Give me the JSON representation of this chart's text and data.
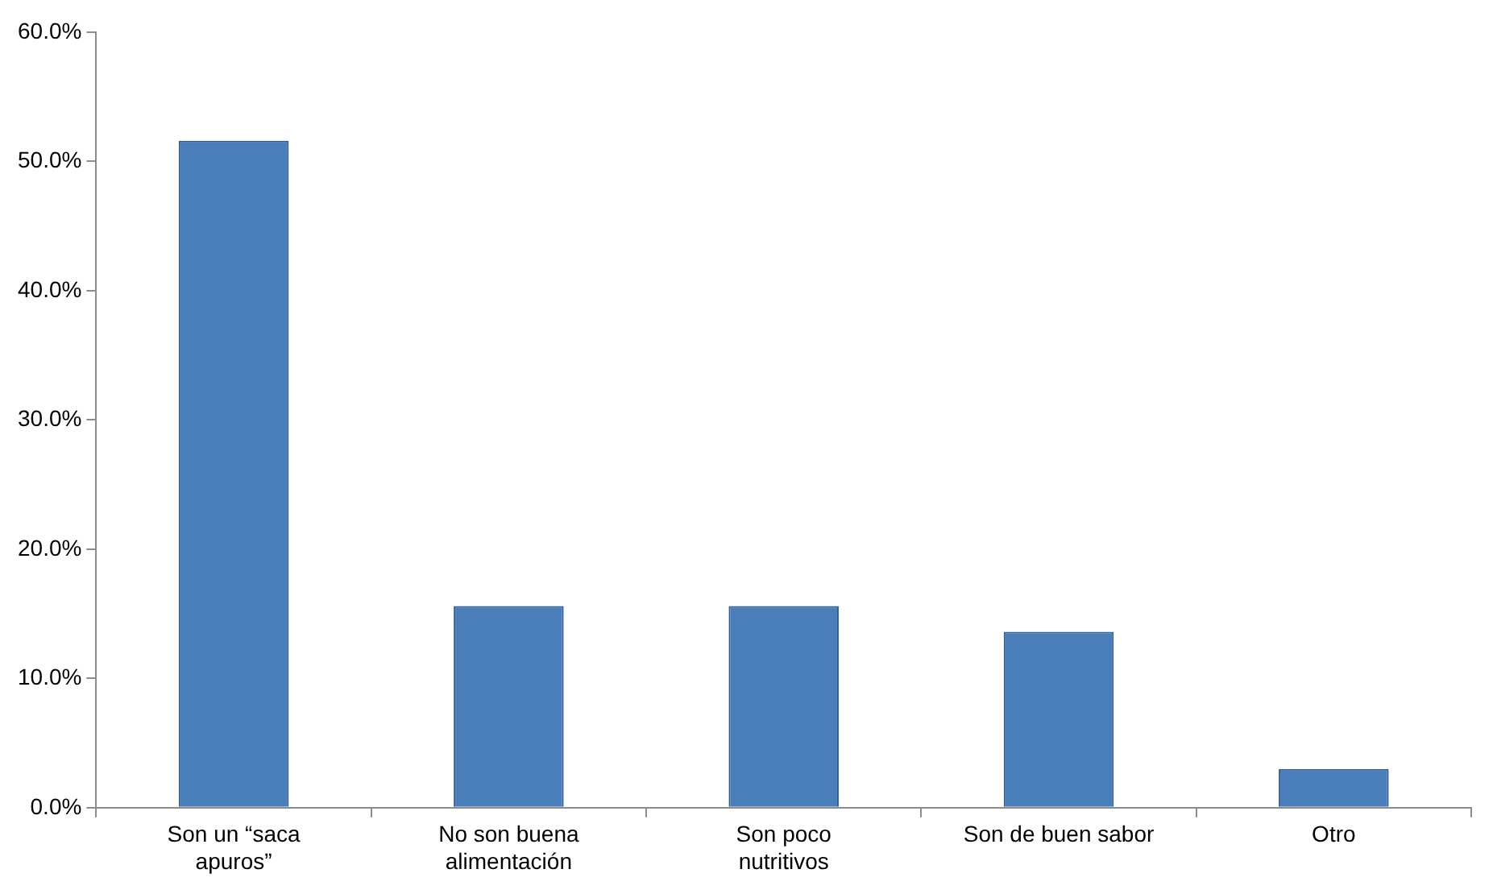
{
  "chart_data": {
    "type": "bar",
    "categories": [
      "Son un “saca apuros”",
      "No son buena alimentación",
      "Son poco nutritivos",
      "Son de buen sabor",
      "Otro"
    ],
    "values": [
      51.6,
      15.6,
      15.6,
      13.6,
      3.0
    ],
    "color": "#4a7ebb",
    "ylim": [
      0,
      60
    ],
    "yticks": [
      {
        "value": 0,
        "label": "0.0%"
      },
      {
        "value": 10,
        "label": "10.0%"
      },
      {
        "value": 20,
        "label": "20.0%"
      },
      {
        "value": 30,
        "label": "30.0%"
      },
      {
        "value": 40,
        "label": "40.0%"
      },
      {
        "value": 50,
        "label": "50.0%"
      },
      {
        "value": 60,
        "label": "60.0%"
      }
    ]
  }
}
